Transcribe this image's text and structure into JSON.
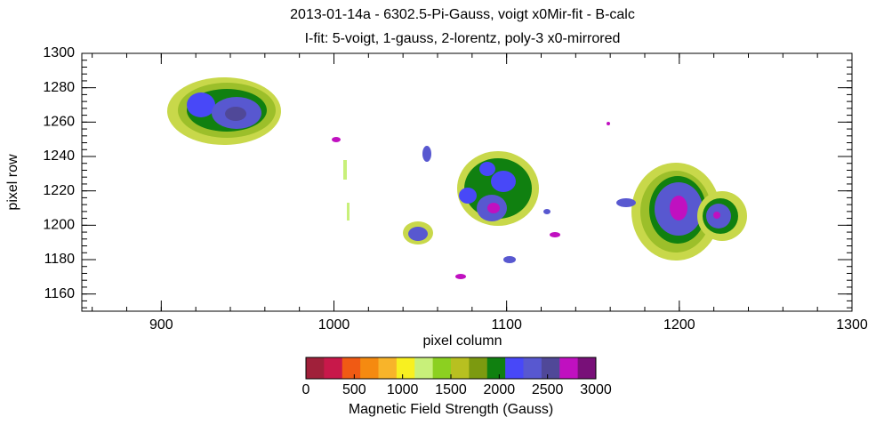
{
  "chart_data": {
    "type": "image",
    "title": "2013-01-14a  -  6302.5-Pi-Gauss, voigt x0Mir-fit  -  B-calc",
    "subtitle": "I-fit: 5-voigt, 1-gauss, 2-lorentz, poly-3  x0-mirrored",
    "x_label": "pixel column",
    "y_label": "pixel row",
    "xlim": [
      854,
      1300
    ],
    "xticks": [
      900,
      1000,
      1100,
      1200,
      1300
    ],
    "x_minor_step": 20,
    "ylim": [
      1150,
      1300
    ],
    "yticks": [
      1160,
      1180,
      1200,
      1220,
      1240,
      1260,
      1280,
      1300
    ],
    "y_minor_step": 4,
    "colorbar": {
      "label": "Magnetic Field Strength (Gauss)",
      "range": [
        0,
        3000
      ],
      "ticks": [
        0,
        500,
        1000,
        1500,
        2000,
        2500,
        3000
      ],
      "colors": [
        "#a0203a",
        "#c8184a",
        "#f05a14",
        "#f58a10",
        "#f8b42a",
        "#f8f020",
        "#c8f07a",
        "#8cd020",
        "#b8c020",
        "#7c9a10",
        "#108010",
        "#4848f8",
        "#5858d0",
        "#504898",
        "#c010c0",
        "#781078"
      ]
    }
  }
}
